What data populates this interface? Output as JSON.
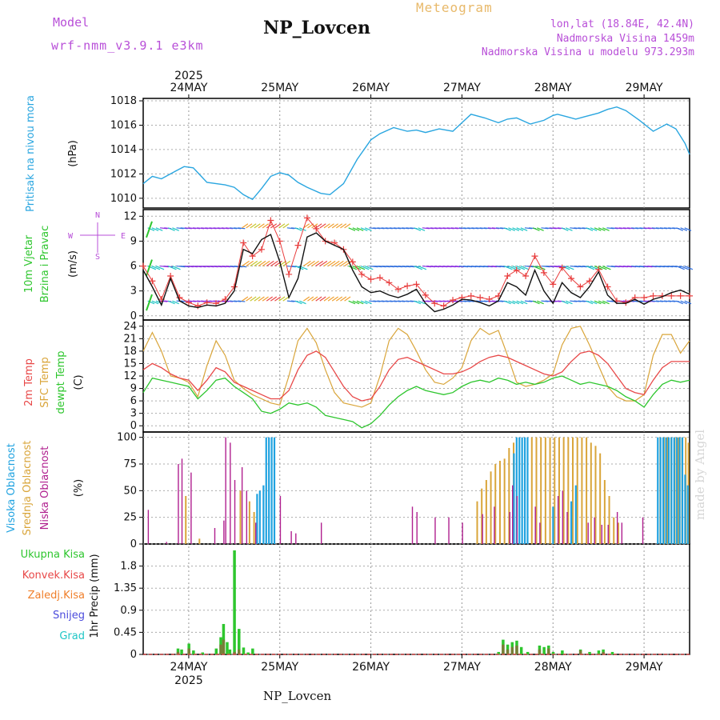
{
  "header": {
    "model_label": "Model",
    "model_name": "wrf-nmm_v3.9.1 e3km",
    "station_title": "NP_Lovcen",
    "meteogram_title": "Meteogram",
    "lonlat": "lon,lat (18.84E, 42.4N)",
    "altitude": "Nadmorska Visina 1459m",
    "model_altitude": "Nadmorska Visina u modelu 973.293m"
  },
  "footer": {
    "station": "NP_Lovcen",
    "credit": "made by Angel"
  },
  "time_axis": {
    "year": "2025",
    "dates": [
      "24MAY",
      "25MAY",
      "26MAY",
      "27MAY",
      "28MAY",
      "29MAY"
    ],
    "date_positions": [
      0.5,
      1.5,
      2.5,
      3.5,
      4.5,
      5.5
    ],
    "range": [
      0,
      6
    ]
  },
  "colors": {
    "pressure": "#2aa6e0",
    "wind_speed": "#111111",
    "wind_gust": "#e83c3c",
    "temp_2m": "#e84848",
    "temp_sfc": "#d9a53a",
    "dewpoint": "#2ec62e",
    "high_cloud": "#1fa2e0",
    "mid_cloud": "#d9a53a",
    "low_cloud": "#b0208f",
    "precip_total": "#2ec62e",
    "precip_conv": "#e84848",
    "precip_frozen": "#f07f2a",
    "snow": "#4b4bdc",
    "hail": "#1fc6c6",
    "legend_violet": "#b84fd8"
  },
  "chart_data": [
    {
      "id": "pressure",
      "type": "line",
      "ylabel_lines": [
        "Pritisak na nivou mora"
      ],
      "unit": "(hPa)",
      "ylim": [
        1009.2,
        1018.2
      ],
      "yticks": [
        1010,
        1012,
        1014,
        1016,
        1018
      ],
      "t": [
        0,
        0.1,
        0.2,
        0.35,
        0.45,
        0.55,
        0.7,
        0.9,
        1.0,
        1.1,
        1.2,
        1.3,
        1.4,
        1.5,
        1.6,
        1.7,
        1.8,
        1.95,
        2.05,
        2.2,
        2.35,
        2.5,
        2.6,
        2.75,
        2.9,
        3.0,
        3.1,
        3.25,
        3.4,
        3.5,
        3.6,
        3.75,
        3.9,
        4.0,
        4.1,
        4.25,
        4.4,
        4.5,
        4.55,
        4.65,
        4.75,
        4.85,
        5.0,
        5.1,
        5.2,
        5.3,
        5.45,
        5.6,
        5.75,
        5.85,
        5.95,
        6.0
      ],
      "values": [
        1011.2,
        1011.8,
        1011.6,
        1012.2,
        1012.6,
        1012.5,
        1011.3,
        1011.1,
        1010.9,
        1010.3,
        1009.9,
        1010.8,
        1011.8,
        1012.1,
        1011.9,
        1011.3,
        1010.9,
        1010.4,
        1010.3,
        1011.2,
        1013.2,
        1014.8,
        1015.3,
        1015.8,
        1015.5,
        1015.6,
        1015.4,
        1015.7,
        1015.5,
        1016.2,
        1016.9,
        1016.6,
        1016.2,
        1016.5,
        1016.6,
        1016.1,
        1016.4,
        1016.8,
        1016.9,
        1016.7,
        1016.5,
        1016.7,
        1017.0,
        1017.3,
        1017.5,
        1017.2,
        1016.4,
        1015.5,
        1016.1,
        1015.7,
        1014.5,
        1013.6
      ]
    },
    {
      "id": "wind",
      "type": "line",
      "ylabel_lines": [
        "10m Vjetar",
        "Brzina i Pravac"
      ],
      "unit": "(m/s)",
      "compass": [
        "N",
        "S",
        "W",
        "E"
      ],
      "ylim": [
        -0.5,
        12.8
      ],
      "yticks": [
        0,
        3,
        6,
        9,
        12
      ],
      "levels": [
        1.8,
        6.0,
        10.6
      ],
      "t": [
        0,
        0.1,
        0.2,
        0.3,
        0.4,
        0.5,
        0.6,
        0.7,
        0.8,
        0.9,
        1.0,
        1.1,
        1.2,
        1.3,
        1.4,
        1.5,
        1.6,
        1.7,
        1.8,
        1.9,
        2.0,
        2.1,
        2.2,
        2.3,
        2.4,
        2.5,
        2.6,
        2.7,
        2.8,
        2.9,
        3.0,
        3.1,
        3.2,
        3.3,
        3.4,
        3.5,
        3.6,
        3.7,
        3.8,
        3.9,
        4.0,
        4.1,
        4.2,
        4.3,
        4.4,
        4.5,
        4.6,
        4.7,
        4.8,
        4.9,
        5.0,
        5.1,
        5.2,
        5.3,
        5.4,
        5.5,
        5.6,
        5.7,
        5.8,
        5.9,
        6.0
      ],
      "speed": [
        5.5,
        3.5,
        1.3,
        4.5,
        1.8,
        1.2,
        1.0,
        1.3,
        1.2,
        1.5,
        3.0,
        8.0,
        7.5,
        9.2,
        9.8,
        6.5,
        2.2,
        4.5,
        9.5,
        10.0,
        9.0,
        8.5,
        8.0,
        5.5,
        3.5,
        2.8,
        3.0,
        2.5,
        2.2,
        2.6,
        3.2,
        1.5,
        0.5,
        0.8,
        1.3,
        2.0,
        1.9,
        1.6,
        1.2,
        1.8,
        4.0,
        3.5,
        2.5,
        5.5,
        3.0,
        1.5,
        4.0,
        2.8,
        2.2,
        3.5,
        5.3,
        2.5,
        1.5,
        1.5,
        2.0,
        1.4,
        2.0,
        2.3,
        2.8,
        3.1,
        2.6
      ],
      "gust": [
        6.0,
        4.2,
        2.0,
        4.8,
        2.2,
        1.6,
        1.2,
        1.6,
        1.5,
        2.0,
        3.5,
        8.8,
        7.2,
        8.0,
        11.5,
        9.0,
        5.0,
        8.5,
        11.8,
        10.5,
        9.0,
        8.8,
        8.0,
        6.5,
        5.0,
        4.4,
        4.6,
        4.0,
        3.2,
        3.6,
        3.8,
        2.5,
        1.5,
        1.2,
        1.9,
        2.2,
        2.4,
        2.2,
        2.0,
        2.4,
        4.8,
        5.5,
        4.8,
        7.2,
        5.2,
        3.8,
        5.8,
        4.5,
        3.5,
        4.2,
        5.6,
        3.5,
        1.8,
        1.6,
        2.2,
        2.2,
        2.4,
        2.4,
        2.4,
        2.4,
        2.4
      ]
    },
    {
      "id": "temperature",
      "type": "line",
      "ylabel_lines": [
        "2m Temp",
        "SFC Temp",
        "dewpt Temp"
      ],
      "unit": "(C)",
      "ylim": [
        -1.5,
        25.5
      ],
      "yticks": [
        0,
        3,
        6,
        9,
        12,
        15,
        18,
        21,
        24
      ],
      "t": [
        0,
        0.1,
        0.2,
        0.3,
        0.4,
        0.5,
        0.6,
        0.7,
        0.8,
        0.9,
        1.0,
        1.1,
        1.2,
        1.3,
        1.4,
        1.5,
        1.6,
        1.7,
        1.8,
        1.9,
        2.0,
        2.1,
        2.2,
        2.3,
        2.4,
        2.5,
        2.6,
        2.7,
        2.8,
        2.9,
        3.0,
        3.1,
        3.2,
        3.3,
        3.4,
        3.5,
        3.6,
        3.7,
        3.8,
        3.9,
        4.0,
        4.1,
        4.2,
        4.3,
        4.4,
        4.5,
        4.6,
        4.7,
        4.8,
        4.9,
        5.0,
        5.1,
        5.2,
        5.3,
        5.4,
        5.5,
        5.6,
        5.7,
        5.8,
        5.9,
        6.0
      ],
      "t2m": [
        13.5,
        15.0,
        14.0,
        12.5,
        11.5,
        11.0,
        8.5,
        11.0,
        14.0,
        13.0,
        10.5,
        9.5,
        8.5,
        7.5,
        6.5,
        6.5,
        8.5,
        13.5,
        17.0,
        18.0,
        16.5,
        13.0,
        9.5,
        7.0,
        6.0,
        6.5,
        9.5,
        13.5,
        16.0,
        16.5,
        15.5,
        14.5,
        13.5,
        12.5,
        12.5,
        13.0,
        14.0,
        15.5,
        16.5,
        17.0,
        16.5,
        15.5,
        14.5,
        13.5,
        12.5,
        12.0,
        13.0,
        15.5,
        17.5,
        18.0,
        17.0,
        15.0,
        12.0,
        9.0,
        8.0,
        7.5,
        11.0,
        14.0,
        15.5,
        15.5,
        15.5
      ],
      "tsfc": [
        18.0,
        22.5,
        18.0,
        12.0,
        11.5,
        10.5,
        7.0,
        14.5,
        20.5,
        17.0,
        11.0,
        9.0,
        7.5,
        6.5,
        5.5,
        5.0,
        12.0,
        20.5,
        23.5,
        20.0,
        13.5,
        8.0,
        5.5,
        5.0,
        4.5,
        5.5,
        12.0,
        20.5,
        23.5,
        22.0,
        18.0,
        13.5,
        10.5,
        10.0,
        11.5,
        14.0,
        20.5,
        23.5,
        22.0,
        23.0,
        17.0,
        10.5,
        9.5,
        10.0,
        11.0,
        12.5,
        19.5,
        23.5,
        24.0,
        19.5,
        14.5,
        9.5,
        7.0,
        6.0,
        6.0,
        7.5,
        17.0,
        22.0,
        22.0,
        17.5,
        20.5
      ],
      "dewpt": [
        8.0,
        11.5,
        11.0,
        10.5,
        10.0,
        9.5,
        6.5,
        8.5,
        11.0,
        11.5,
        9.5,
        8.0,
        6.5,
        3.5,
        3.0,
        4.0,
        5.5,
        5.0,
        5.5,
        4.5,
        2.5,
        2.0,
        1.5,
        1.0,
        -0.5,
        0.5,
        2.5,
        5.0,
        7.0,
        8.5,
        9.5,
        8.5,
        8.0,
        7.5,
        8.0,
        9.5,
        10.5,
        11.0,
        10.5,
        11.5,
        11.0,
        10.0,
        10.5,
        10.0,
        10.5,
        11.5,
        12.0,
        11.0,
        10.0,
        10.5,
        10.0,
        9.5,
        8.5,
        7.0,
        6.0,
        4.5,
        7.5,
        10.0,
        11.0,
        10.5,
        11.0
      ]
    },
    {
      "id": "clouds",
      "type": "bar",
      "ylabel_lines": [
        "Visoka Oblacnost",
        "Srednja Oblacnost",
        "Niska Oblacnost"
      ],
      "unit": "(%)",
      "ylim": [
        0,
        105
      ],
      "yticks": [
        0,
        25,
        50,
        75,
        100
      ],
      "high": [
        [
          1.25,
          47
        ],
        [
          1.28,
          50
        ],
        [
          1.32,
          55
        ],
        [
          1.35,
          100
        ],
        [
          1.38,
          100
        ],
        [
          1.41,
          100
        ],
        [
          1.44,
          100
        ],
        [
          4.07,
          85
        ],
        [
          4.1,
          100
        ],
        [
          4.13,
          100
        ],
        [
          4.16,
          100
        ],
        [
          4.19,
          100
        ],
        [
          4.22,
          100
        ],
        [
          4.5,
          35
        ],
        [
          4.7,
          40
        ],
        [
          4.75,
          55
        ],
        [
          5.65,
          100
        ],
        [
          5.68,
          100
        ],
        [
          5.71,
          100
        ],
        [
          5.74,
          100
        ],
        [
          5.77,
          100
        ],
        [
          5.8,
          100
        ],
        [
          5.83,
          100
        ],
        [
          5.86,
          100
        ],
        [
          5.89,
          100
        ],
        [
          5.92,
          100
        ],
        [
          5.95,
          65
        ],
        [
          5.98,
          55
        ]
      ],
      "mid": [
        [
          0.45,
          45
        ],
        [
          0.6,
          5
        ],
        [
          1.05,
          50
        ],
        [
          1.15,
          40
        ],
        [
          1.2,
          30
        ],
        [
          3.65,
          40
        ],
        [
          3.7,
          52
        ],
        [
          3.75,
          60
        ],
        [
          3.8,
          68
        ],
        [
          3.85,
          75
        ],
        [
          3.9,
          78
        ],
        [
          3.95,
          80
        ],
        [
          4.0,
          90
        ],
        [
          4.05,
          95
        ],
        [
          4.25,
          100
        ],
        [
          4.3,
          100
        ],
        [
          4.35,
          100
        ],
        [
          4.4,
          100
        ],
        [
          4.45,
          100
        ],
        [
          4.5,
          100
        ],
        [
          4.55,
          100
        ],
        [
          4.6,
          100
        ],
        [
          4.65,
          100
        ],
        [
          4.7,
          100
        ],
        [
          4.75,
          100
        ],
        [
          4.8,
          100
        ],
        [
          4.85,
          100
        ],
        [
          4.9,
          95
        ],
        [
          4.95,
          92
        ],
        [
          5.0,
          85
        ],
        [
          5.05,
          60
        ],
        [
          5.1,
          45
        ],
        [
          5.15,
          25
        ],
        [
          5.2,
          20
        ],
        [
          5.66,
          100
        ],
        [
          5.7,
          100
        ],
        [
          5.74,
          100
        ],
        [
          5.78,
          100
        ],
        [
          5.82,
          100
        ],
        [
          5.86,
          100
        ],
        [
          5.9,
          100
        ],
        [
          5.94,
          100
        ],
        [
          5.97,
          95
        ]
      ],
      "low": [
        [
          0.05,
          32
        ],
        [
          0.25,
          2
        ],
        [
          0.38,
          75
        ],
        [
          0.42,
          80
        ],
        [
          0.52,
          67
        ],
        [
          0.78,
          15
        ],
        [
          0.88,
          22
        ],
        [
          0.9,
          100
        ],
        [
          0.95,
          95
        ],
        [
          1.0,
          60
        ],
        [
          1.08,
          72
        ],
        [
          1.13,
          50
        ],
        [
          1.23,
          20
        ],
        [
          1.5,
          45
        ],
        [
          1.62,
          12
        ],
        [
          1.67,
          10
        ],
        [
          1.95,
          20
        ],
        [
          2.95,
          35
        ],
        [
          3.0,
          30
        ],
        [
          3.2,
          25
        ],
        [
          3.35,
          25
        ],
        [
          3.5,
          20
        ],
        [
          3.72,
          28
        ],
        [
          3.85,
          35
        ],
        [
          4.02,
          30
        ],
        [
          4.05,
          55
        ],
        [
          4.1,
          45
        ],
        [
          4.3,
          35
        ],
        [
          4.35,
          20
        ],
        [
          4.55,
          45
        ],
        [
          4.6,
          50
        ],
        [
          4.65,
          30
        ],
        [
          4.88,
          20
        ],
        [
          4.95,
          25
        ],
        [
          5.03,
          18
        ],
        [
          5.1,
          18
        ],
        [
          5.2,
          30
        ],
        [
          5.25,
          20
        ],
        [
          5.48,
          25
        ]
      ]
    },
    {
      "id": "precip",
      "type": "bar",
      "ylabel_lines": [
        "1hr Precip (mm)"
      ],
      "legend": [
        "Ukupna Kisa",
        "Konvek.Kisa",
        "Zaledj.Kisa",
        "Snijeg",
        "Grad"
      ],
      "ylim": [
        0,
        2.25
      ],
      "yticks": [
        0,
        0.45,
        0.9,
        1.35,
        1.8
      ],
      "total": [
        [
          0.38,
          0.12
        ],
        [
          0.42,
          0.1
        ],
        [
          0.5,
          0.22
        ],
        [
          0.55,
          0.08
        ],
        [
          0.65,
          0.04
        ],
        [
          0.8,
          0.12
        ],
        [
          0.85,
          0.35
        ],
        [
          0.88,
          0.62
        ],
        [
          0.92,
          0.25
        ],
        [
          0.95,
          0.1
        ],
        [
          1.0,
          2.12
        ],
        [
          1.05,
          0.52
        ],
        [
          1.1,
          0.14
        ],
        [
          1.15,
          0.04
        ],
        [
          1.2,
          0.12
        ],
        [
          3.9,
          0.05
        ],
        [
          3.95,
          0.3
        ],
        [
          4.0,
          0.2
        ],
        [
          4.05,
          0.25
        ],
        [
          4.1,
          0.28
        ],
        [
          4.15,
          0.15
        ],
        [
          4.22,
          0.05
        ],
        [
          4.35,
          0.18
        ],
        [
          4.4,
          0.15
        ],
        [
          4.45,
          0.18
        ],
        [
          4.5,
          0.05
        ],
        [
          4.6,
          0.08
        ],
        [
          4.8,
          0.1
        ],
        [
          4.9,
          0.05
        ],
        [
          5.0,
          0.08
        ],
        [
          5.05,
          0.1
        ],
        [
          5.15,
          0.05
        ]
      ],
      "conv": [
        [
          0.38,
          0.05
        ],
        [
          0.5,
          0.12
        ],
        [
          0.85,
          0.2
        ],
        [
          0.88,
          0.3
        ],
        [
          1.0,
          0.05
        ],
        [
          1.05,
          0.1
        ],
        [
          3.95,
          0.2
        ],
        [
          4.0,
          0.1
        ],
        [
          4.05,
          0.15
        ],
        [
          4.1,
          0.18
        ],
        [
          4.35,
          0.1
        ],
        [
          4.45,
          0.12
        ],
        [
          4.8,
          0.08
        ],
        [
          5.05,
          0.05
        ]
      ]
    }
  ]
}
